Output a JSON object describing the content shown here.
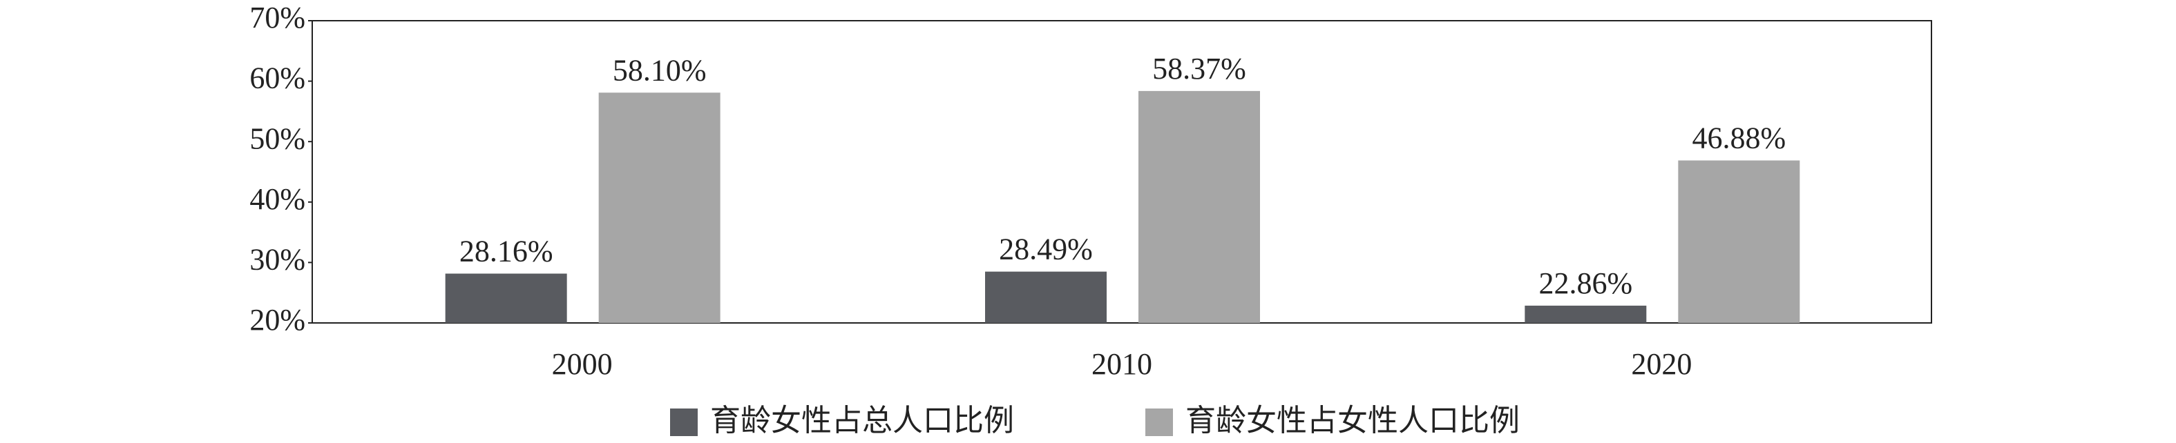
{
  "chart_data": {
    "type": "bar",
    "categories": [
      "2000",
      "2010",
      "2020"
    ],
    "series": [
      {
        "name": "育龄女性占总人口比例",
        "color": "#595b60",
        "values": [
          28.16,
          28.49,
          22.86
        ],
        "value_labels": [
          "28.16%",
          "28.49%",
          "22.86%"
        ]
      },
      {
        "name": "育龄女性占女性人口比例",
        "color": "#a6a6a6",
        "values": [
          58.1,
          58.37,
          46.88
        ],
        "value_labels": [
          "58.10%",
          "58.37%",
          "46.88%"
        ]
      }
    ],
    "ylim": [
      20,
      70
    ],
    "yticks": [
      {
        "value": 20,
        "label": "20%"
      },
      {
        "value": 30,
        "label": "30%"
      },
      {
        "value": 40,
        "label": "40%"
      },
      {
        "value": 50,
        "label": "50%"
      },
      {
        "value": 60,
        "label": "60%"
      },
      {
        "value": 70,
        "label": "70%"
      }
    ],
    "legend": "bottom"
  }
}
